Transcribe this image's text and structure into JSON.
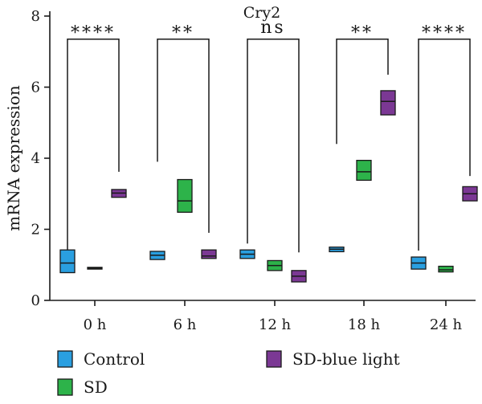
{
  "chart_data": {
    "type": "box",
    "title": "Cry2",
    "xlabel": "",
    "ylabel": "mRNA expression",
    "ylim": [
      0,
      8
    ],
    "yticks": [
      "0",
      "2",
      "4",
      "6",
      "8"
    ],
    "categories": [
      "0 h",
      "6 h",
      "12 h",
      "18 h",
      "24 h"
    ],
    "grid": false,
    "legend_position": "bottom",
    "series": [
      {
        "name": "Control",
        "color": "#2a9fe0",
        "boxes": [
          {
            "min": 0.78,
            "median": 1.05,
            "max": 1.42
          },
          {
            "min": 1.15,
            "median": 1.27,
            "max": 1.38
          },
          {
            "min": 1.18,
            "median": 1.3,
            "max": 1.42
          },
          {
            "min": 1.37,
            "median": 1.44,
            "max": 1.5
          },
          {
            "min": 0.88,
            "median": 1.05,
            "max": 1.22
          }
        ]
      },
      {
        "name": "SD",
        "color": "#2db34a",
        "boxes": [
          {
            "min": 0.88,
            "median": 0.9,
            "max": 0.93
          },
          {
            "min": 2.48,
            "median": 2.8,
            "max": 3.4
          },
          {
            "min": 0.84,
            "median": 0.98,
            "max": 1.12
          },
          {
            "min": 3.38,
            "median": 3.62,
            "max": 3.94
          },
          {
            "min": 0.8,
            "median": 0.86,
            "max": 0.96
          }
        ]
      },
      {
        "name": "SD-blue light",
        "color": "#7b3894",
        "boxes": [
          {
            "min": 2.9,
            "median": 3.02,
            "max": 3.12
          },
          {
            "min": 1.18,
            "median": 1.25,
            "max": 1.42
          },
          {
            "min": 0.52,
            "median": 0.68,
            "max": 0.84
          },
          {
            "min": 5.22,
            "median": 5.6,
            "max": 5.9
          },
          {
            "min": 2.8,
            "median": 3.0,
            "max": 3.2
          }
        ]
      }
    ],
    "significance": [
      {
        "category": "0 h",
        "label": "****",
        "left_y": 1.4,
        "right_y": 3.62,
        "top_y": 7.35
      },
      {
        "category": "6 h",
        "label": "**",
        "left_y": 3.9,
        "right_y": 1.9,
        "top_y": 7.35
      },
      {
        "category": "12 h",
        "label": "ns",
        "left_y": 1.6,
        "right_y": 1.35,
        "top_y": 7.35
      },
      {
        "category": "18 h",
        "label": "**",
        "left_y": 4.4,
        "right_y": 6.35,
        "top_y": 7.35
      },
      {
        "category": "24 h",
        "label": "****",
        "left_y": 1.4,
        "right_y": 3.5,
        "top_y": 7.35
      }
    ]
  }
}
